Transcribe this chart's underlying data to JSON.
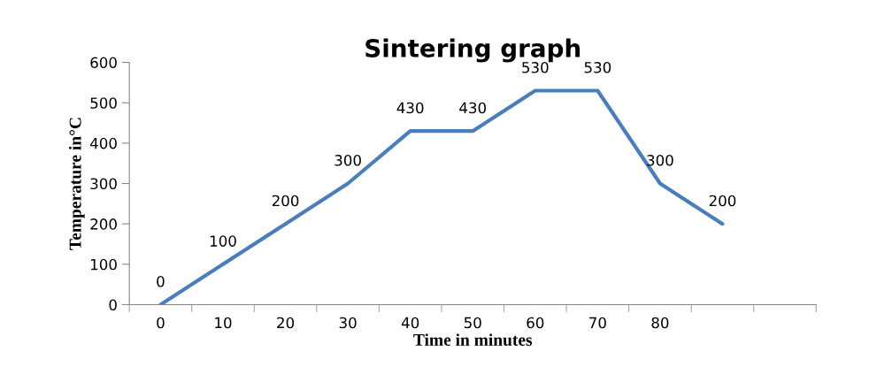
{
  "chart_data": {
    "type": "line",
    "title": "Sintering graph",
    "xlabel": "Time in minutes",
    "ylabel": "Temperature in°C",
    "categories": [
      "0",
      "10",
      "20",
      "30",
      "40",
      "50",
      "60",
      "70",
      "80",
      null,
      null
    ],
    "series": [
      {
        "color": "#4a7ebb",
        "values": [
          0,
          100,
          200,
          300,
          430,
          430,
          530,
          530,
          300,
          200,
          null
        ]
      }
    ],
    "ylim": [
      0,
      600
    ],
    "yticks": [
      0,
      100,
      200,
      300,
      400,
      500,
      600
    ],
    "data_labels": true,
    "grid": false,
    "marker": "none",
    "line_style": "solid"
  }
}
